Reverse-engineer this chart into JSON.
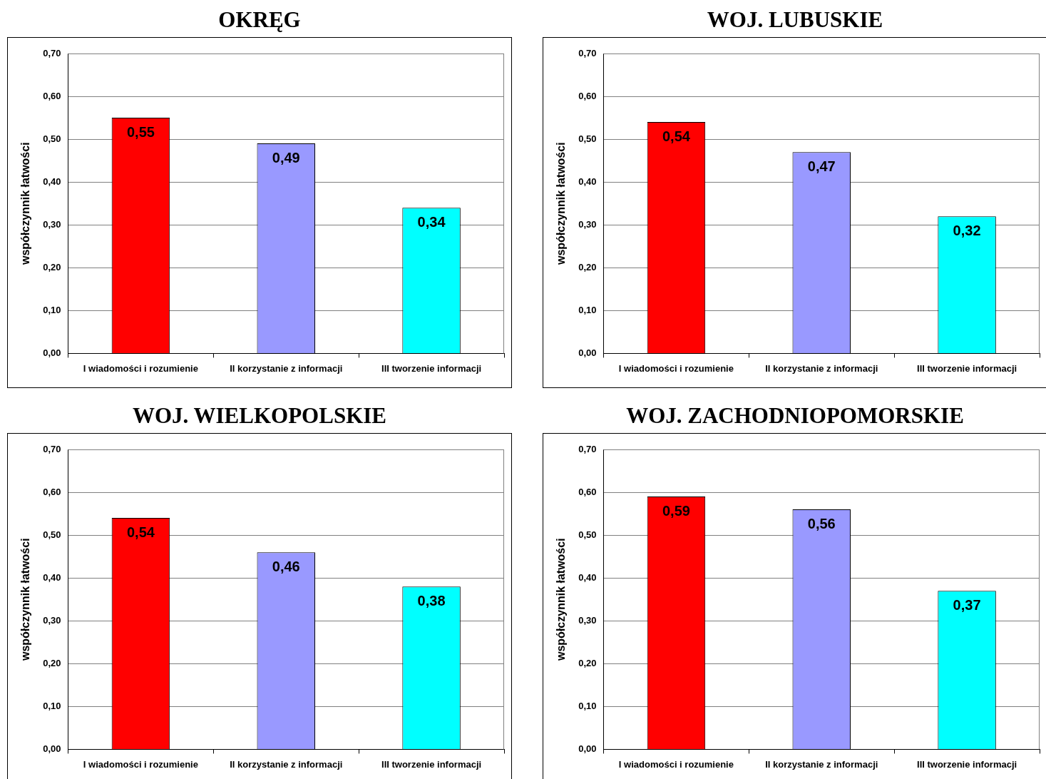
{
  "chart_data": [
    {
      "type": "bar",
      "title": "OKRĘG",
      "ylabel": "współczynnik łatwości",
      "categories": [
        "I wiadomości i rozumienie",
        "II korzystanie z informacji",
        "III tworzenie informacji"
      ],
      "values": [
        0.55,
        0.49,
        0.34
      ],
      "value_labels": [
        "0,55",
        "0,49",
        "0,34"
      ],
      "colors": [
        "#ff0000",
        "#9999ff",
        "#00ffff"
      ],
      "ylim": [
        0,
        0.7
      ],
      "yticks": [
        {
          "value": 0,
          "label": "0,00"
        },
        {
          "value": 0.1,
          "label": "0,10"
        },
        {
          "value": 0.2,
          "label": "0,20"
        },
        {
          "value": 0.3,
          "label": "0,30"
        },
        {
          "value": 0.4,
          "label": "0,40"
        },
        {
          "value": 0.5,
          "label": "0,50"
        },
        {
          "value": 0.6,
          "label": "0,60"
        },
        {
          "value": 0.7,
          "label": "0,70"
        }
      ],
      "grid": "y"
    },
    {
      "type": "bar",
      "title": "WOJ. LUBUSKIE",
      "ylabel": "współczynnik łatwości",
      "categories": [
        "I wiadomości i rozumienie",
        "II korzystanie z informacji",
        "III tworzenie informacji"
      ],
      "values": [
        0.54,
        0.47,
        0.32
      ],
      "value_labels": [
        "0,54",
        "0,47",
        "0,32"
      ],
      "colors": [
        "#ff0000",
        "#9999ff",
        "#00ffff"
      ],
      "ylim": [
        0,
        0.7
      ],
      "yticks": [
        {
          "value": 0,
          "label": "0,00"
        },
        {
          "value": 0.1,
          "label": "0,10"
        },
        {
          "value": 0.2,
          "label": "0,20"
        },
        {
          "value": 0.3,
          "label": "0,30"
        },
        {
          "value": 0.4,
          "label": "0,40"
        },
        {
          "value": 0.5,
          "label": "0,50"
        },
        {
          "value": 0.6,
          "label": "0,60"
        },
        {
          "value": 0.7,
          "label": "0,70"
        }
      ],
      "grid": "y"
    },
    {
      "type": "bar",
      "title": "WOJ. WIELKOPOLSKIE",
      "ylabel": "współczynnik łatwości",
      "categories": [
        "I wiadomości i rozumienie",
        "II korzystanie z informacji",
        "III tworzenie informacji"
      ],
      "values": [
        0.54,
        0.46,
        0.38
      ],
      "value_labels": [
        "0,54",
        "0,46",
        "0,38"
      ],
      "colors": [
        "#ff0000",
        "#9999ff",
        "#00ffff"
      ],
      "ylim": [
        0,
        0.7
      ],
      "yticks": [
        {
          "value": 0,
          "label": "0,00"
        },
        {
          "value": 0.1,
          "label": "0,10"
        },
        {
          "value": 0.2,
          "label": "0,20"
        },
        {
          "value": 0.3,
          "label": "0,30"
        },
        {
          "value": 0.4,
          "label": "0,40"
        },
        {
          "value": 0.5,
          "label": "0,50"
        },
        {
          "value": 0.6,
          "label": "0,60"
        },
        {
          "value": 0.7,
          "label": "0,70"
        }
      ],
      "grid": "y"
    },
    {
      "type": "bar",
      "title": "WOJ. ZACHODNIOPOMORSKIE",
      "ylabel": "współczynnik łatwości",
      "categories": [
        "I wiadomości i rozumienie",
        "II korzystanie z informacji",
        "III tworzenie informacji"
      ],
      "values": [
        0.59,
        0.56,
        0.37
      ],
      "value_labels": [
        "0,59",
        "0,56",
        "0,37"
      ],
      "colors": [
        "#ff0000",
        "#9999ff",
        "#00ffff"
      ],
      "ylim": [
        0,
        0.7
      ],
      "yticks": [
        {
          "value": 0,
          "label": "0,00"
        },
        {
          "value": 0.1,
          "label": "0,10"
        },
        {
          "value": 0.2,
          "label": "0,20"
        },
        {
          "value": 0.3,
          "label": "0,30"
        },
        {
          "value": 0.4,
          "label": "0,40"
        },
        {
          "value": 0.5,
          "label": "0,50"
        },
        {
          "value": 0.6,
          "label": "0,60"
        },
        {
          "value": 0.7,
          "label": "0,70"
        }
      ],
      "grid": "y"
    }
  ]
}
